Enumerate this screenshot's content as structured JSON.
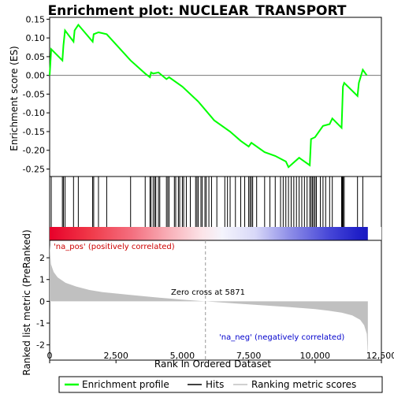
{
  "chart_data": {
    "type": "line",
    "title": "Enrichment plot: NUCLEAR_TRANSPORT",
    "top_panel": {
      "ylabel": "Enrichment score (ES)",
      "ylim": [
        -0.27,
        0.155
      ],
      "yticks": [
        0.15,
        0.1,
        0.05,
        0.0,
        -0.05,
        -0.1,
        -0.15,
        -0.2,
        -0.25
      ],
      "ytick_labels": [
        "0.15",
        "0.10",
        "0.05",
        "0.00",
        "-0.05",
        "-0.10",
        "-0.15",
        "-0.20",
        "-0.25"
      ],
      "series": [
        {
          "name": "Enrichment profile",
          "color": "#00ff00",
          "x": [
            0,
            60,
            480,
            520,
            580,
            900,
            940,
            1080,
            1620,
            1660,
            1840,
            2150,
            3050,
            3600,
            3780,
            3820,
            3900,
            4100,
            4400,
            4500,
            5000,
            5600,
            6200,
            6800,
            7200,
            7500,
            7600,
            8100,
            8500,
            8900,
            9000,
            9400,
            9800,
            9850,
            10000,
            10300,
            10550,
            10650,
            11000,
            11050,
            11100,
            11600,
            11650,
            11800,
            11950
          ],
          "y": [
            0.0,
            0.07,
            0.04,
            0.08,
            0.12,
            0.09,
            0.12,
            0.135,
            0.09,
            0.11,
            0.115,
            0.11,
            0.04,
            0.005,
            -0.005,
            0.008,
            0.005,
            0.008,
            -0.01,
            -0.005,
            -0.03,
            -0.07,
            -0.12,
            -0.15,
            -0.175,
            -0.19,
            -0.18,
            -0.205,
            -0.215,
            -0.23,
            -0.245,
            -0.22,
            -0.24,
            -0.17,
            -0.165,
            -0.135,
            -0.13,
            -0.115,
            -0.14,
            -0.03,
            -0.02,
            -0.055,
            -0.02,
            0.015,
            0.0
          ]
        }
      ]
    },
    "hits_panel": {
      "hit_positions": [
        60,
        480,
        520,
        580,
        900,
        1080,
        1620,
        1660,
        1840,
        2150,
        3050,
        3600,
        3780,
        3820,
        3900,
        3960,
        4000,
        4100,
        4150,
        4400,
        4450,
        4500,
        4700,
        4750,
        4850,
        4900,
        5000,
        5050,
        5150,
        5300,
        5500,
        5550,
        5600,
        5700,
        5750,
        5850,
        5900,
        6000,
        6100,
        6300,
        6600,
        6700,
        6800,
        7000,
        7200,
        7350,
        7500,
        7550,
        7600,
        7650,
        7800,
        8100,
        8300,
        8500,
        8700,
        8800,
        8900,
        9000,
        9100,
        9200,
        9300,
        9400,
        9500,
        9600,
        9700,
        9800,
        9850,
        9900,
        9950,
        10000,
        10050,
        10200,
        10300,
        10400,
        10550,
        10650,
        11000,
        11030,
        11060,
        11100,
        11600,
        11800
      ]
    },
    "bottom_panel": {
      "ylabel": "Ranked list metric (PreRanked)",
      "xlabel": "Rank in Ordered Dataset",
      "ylim": [
        -2.7,
        2.8
      ],
      "yticks": [
        2,
        1,
        0,
        -1,
        -2
      ],
      "ytick_labels": [
        "2",
        "1",
        "0",
        "-1",
        "-2"
      ],
      "x": [
        0,
        50,
        150,
        300,
        600,
        1000,
        1500,
        2000,
        3000,
        4000,
        5000,
        5871,
        7000,
        8000,
        9000,
        10000,
        10500,
        11000,
        11400,
        11700,
        11850,
        11950,
        11990
      ],
      "y": [
        2.6,
        1.7,
        1.35,
        1.1,
        0.85,
        0.68,
        0.52,
        0.42,
        0.3,
        0.18,
        0.08,
        0.0,
        -0.1,
        -0.18,
        -0.26,
        -0.36,
        -0.43,
        -0.52,
        -0.65,
        -0.85,
        -1.1,
        -1.5,
        -2.6
      ],
      "pos_label": "'na_pos' (positively correlated)",
      "neg_label": "'na_neg' (negatively correlated)",
      "zero_cross_label": "Zero cross at 5871",
      "zero_cross": 5871
    },
    "xlim": [
      0,
      12500
    ],
    "xticks": [
      0,
      2500,
      5000,
      7500,
      10000,
      12500
    ],
    "xtick_labels": [
      "0",
      "2,500",
      "5,000",
      "7,500",
      "10,000",
      "12,500"
    ],
    "n_genes": 11990
  },
  "legend": {
    "items": [
      {
        "label": "Enrichment profile",
        "color": "#00ff00"
      },
      {
        "label": "Hits",
        "color": "#000000"
      },
      {
        "label": "Ranking metric scores",
        "color": "#c0c0c0"
      }
    ]
  },
  "colors": {
    "pos_text": "#cc0000",
    "neg_text": "#0000cc",
    "metric_fill": "#c0c0c0",
    "profile": "#00ff00"
  }
}
